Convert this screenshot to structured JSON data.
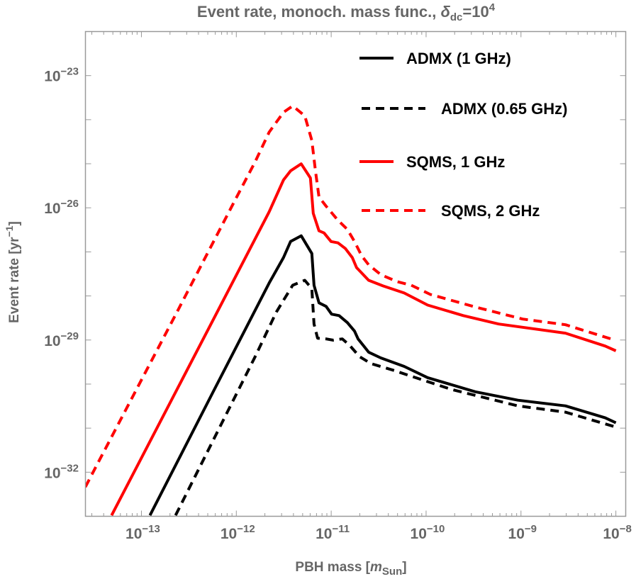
{
  "chart_data": {
    "type": "line",
    "title": {
      "main": "Event rate, monoch. mass func., ",
      "symbol": "δ",
      "symbol_sub": "dc",
      "eq": "=10",
      "eq_exp": "4"
    },
    "xlabel": {
      "main": "PBH mass [",
      "italic": "m",
      "sub": "Sun",
      "close": "]"
    },
    "ylabel": {
      "main": "Event rate [yr",
      "exp": "−1",
      "close": "]"
    },
    "x_scale": "log",
    "y_scale": "log",
    "xlim": [
      2.57e-14,
      1.27e-08
    ],
    "ylim": [
      1e-33,
      1e-22
    ],
    "grid": false,
    "legend_position": "top-right",
    "x_ticks": [
      {
        "value": 1e-13,
        "base": "10",
        "exp": "−13"
      },
      {
        "value": 1e-12,
        "base": "10",
        "exp": "−12"
      },
      {
        "value": 1e-11,
        "base": "10",
        "exp": "−11"
      },
      {
        "value": 1e-10,
        "base": "10",
        "exp": "−10"
      },
      {
        "value": 1e-09,
        "base": "10",
        "exp": "−9"
      },
      {
        "value": 1e-08,
        "base": "10",
        "exp": "−8"
      }
    ],
    "y_ticks": [
      {
        "value": 1e-23,
        "base": "10",
        "exp": "−23"
      },
      {
        "value": 1e-26,
        "base": "10",
        "exp": "−26"
      },
      {
        "value": 1e-29,
        "base": "10",
        "exp": "−29"
      },
      {
        "value": 1e-32,
        "base": "10",
        "exp": "−32"
      }
    ],
    "series": [
      {
        "name": "ADMX (1 GHz)",
        "color": "#000000",
        "dashed": false,
        "x": [
          1.23e-13,
          5.6e-13,
          2.22e-12,
          3.14e-12,
          3.73e-12,
          4.83e-12,
          6.25e-12,
          6.59e-12,
          7.43e-12,
          8.83e-12,
          1.01e-11,
          1.21e-11,
          1.48e-11,
          1.76e-11,
          1.92e-11,
          2.48e-11,
          3.33e-11,
          5.87e-11,
          1.04e-10,
          3.3e-10,
          9.27e-10,
          2.94e-09,
          7.73e-09,
          1e-08
        ],
        "y": [
          1.05e-33,
          6.2e-31,
          1.96e-28,
          7.4e-28,
          1.72e-27,
          2.32e-27,
          9.2e-28,
          1.75e-28,
          6.97e-29,
          5.8e-29,
          3.86e-29,
          3.59e-29,
          2.48e-29,
          1.59e-29,
          1.06e-29,
          5.3e-30,
          3.93e-30,
          2.52e-30,
          1.4e-30,
          6.7e-31,
          4.3e-31,
          3.2e-31,
          1.71e-31,
          1.32e-31
        ]
      },
      {
        "name": "ADMX (0.65 GHz)",
        "color": "#000000",
        "dashed": true,
        "x": [
          2.29e-13,
          5.6e-13,
          1.58e-12,
          2.64e-12,
          3.93e-12,
          5.27e-12,
          6.25e-12,
          6.59e-12,
          7.18e-12,
          8.83e-12,
          1.05e-11,
          1.31e-11,
          1.56e-11,
          1.99e-11,
          2.62e-11,
          4.39e-11,
          6.64e-11,
          1.87e-10,
          9.27e-10,
          2.94e-09,
          1e-08
        ],
        "y": [
          1.05e-33,
          4.9e-32,
          4.2e-30,
          4.3e-29,
          1.75e-28,
          2.27e-28,
          1.46e-28,
          2.31e-29,
          1.1e-29,
          1.06e-29,
          9.9e-30,
          1.06e-29,
          7.6e-30,
          4.2e-30,
          2.92e-30,
          2.1e-30,
          1.56e-30,
          7.5e-31,
          3.2e-31,
          2.3e-31,
          1.06e-31
        ]
      },
      {
        "name": "SQMS, 1 GHz",
        "color": "#ff0000",
        "dashed": false,
        "x": [
          4.85e-14,
          5.6e-13,
          2.22e-12,
          3.14e-12,
          3.73e-12,
          4.83e-12,
          6.04e-12,
          6.47e-12,
          7.43e-12,
          8.4e-12,
          9.97e-12,
          1.18e-11,
          1.41e-11,
          1.67e-11,
          1.85e-11,
          2.48e-11,
          3.51e-11,
          5.87e-11,
          1.04e-10,
          2.46e-10,
          5.82e-10,
          2.94e-09,
          7.73e-09,
          1e-08
        ],
        "y": [
          1.05e-33,
          2.67e-29,
          8.1e-27,
          4.27e-26,
          6.9e-26,
          9.95e-26,
          4.76e-26,
          7.5e-27,
          3e-27,
          2.69e-27,
          1.72e-27,
          1.6e-27,
          1.19e-27,
          7.4e-28,
          4.4e-28,
          2.27e-28,
          1.69e-28,
          1.17e-28,
          6.2e-29,
          3.59e-29,
          2.31e-29,
          1.43e-29,
          7.3e-30,
          5.7e-30
        ]
      },
      {
        "name": "SQMS, 2 GHz",
        "color": "#ff0000",
        "dashed": true,
        "x": [
          2.56e-14,
          2.37e-13,
          9.4e-13,
          1.58e-12,
          2.22e-12,
          3.14e-12,
          3.93e-12,
          5.27e-12,
          6.25e-12,
          6.82e-12,
          7.43e-12,
          8.83e-12,
          1.18e-11,
          1.48e-11,
          1.76e-11,
          2.09e-11,
          2.48e-11,
          3.33e-11,
          4.95e-11,
          6.98e-11,
          1.11e-10,
          3.3e-10,
          1.04e-09,
          2.94e-09,
          9.8e-09
        ],
        "y": [
          4.6e-33,
          4.3e-29,
          1.31e-26,
          1.11e-25,
          5.2e-25,
          1.47e-24,
          2.05e-24,
          1.22e-24,
          3.37e-25,
          6.9e-26,
          1.76e-26,
          1.09e-26,
          5.2e-27,
          3.23e-27,
          1.72e-27,
          8.2e-28,
          5.1e-28,
          3.05e-28,
          2.11e-28,
          1.75e-28,
          1.08e-28,
          5.6e-29,
          2.99e-29,
          2.22e-29,
          9.9e-30
        ]
      }
    ]
  }
}
